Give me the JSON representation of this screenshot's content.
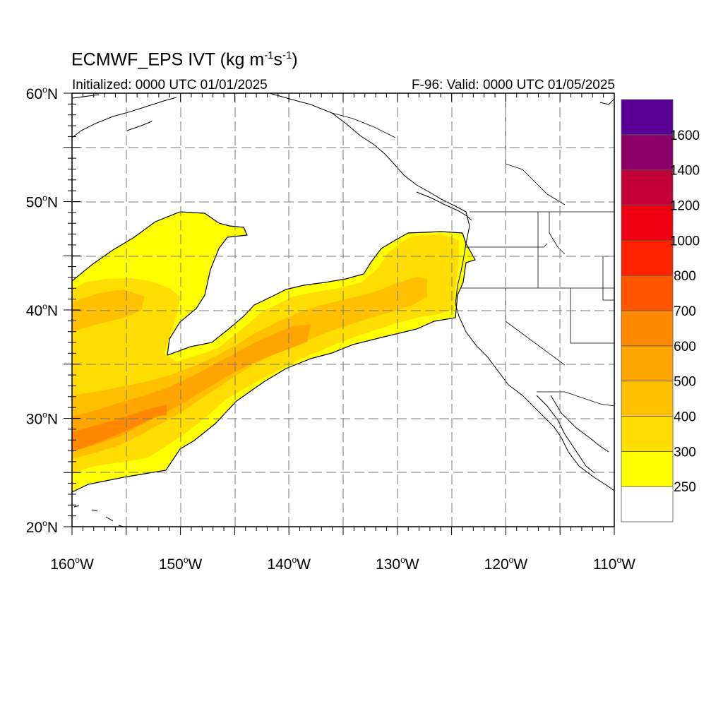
{
  "title": {
    "prefix": "ECMWF_EPS IVT (kg m",
    "exp1": "-1",
    "middle": "s",
    "exp2": "-1",
    "suffix": ")"
  },
  "initialized_label": "Initialized: 0000 UTC 01/01/2025",
  "valid_label": "F-96: Valid: 0000 UTC 01/05/2025",
  "map": {
    "lon_range": [
      -160,
      -110
    ],
    "lat_range": [
      20,
      60
    ],
    "grid_style": "dashed",
    "lon_ticks": [
      {
        "value": -160,
        "num": "160",
        "hemi": "W"
      },
      {
        "value": -150,
        "num": "150",
        "hemi": "W"
      },
      {
        "value": -140,
        "num": "140",
        "hemi": "W"
      },
      {
        "value": -130,
        "num": "130",
        "hemi": "W"
      },
      {
        "value": -120,
        "num": "120",
        "hemi": "W"
      },
      {
        "value": -110,
        "num": "110",
        "hemi": "W"
      }
    ],
    "lat_ticks": [
      {
        "value": 20,
        "num": "20",
        "hemi": "N"
      },
      {
        "value": 30,
        "num": "30",
        "hemi": "N"
      },
      {
        "value": 40,
        "num": "40",
        "hemi": "N"
      },
      {
        "value": 50,
        "num": "50",
        "hemi": "N"
      },
      {
        "value": 60,
        "num": "60",
        "hemi": "N"
      }
    ]
  },
  "colorbar": {
    "labels": [
      "250",
      "300",
      "400",
      "500",
      "600",
      "700",
      "800",
      "1000",
      "1200",
      "1400",
      "1600"
    ],
    "colors": [
      "#ffffff",
      "#ffff00",
      "#ffdd00",
      "#ffc000",
      "#ffa500",
      "#ff8800",
      "#ff5500",
      "#ff2200",
      "#ee0011",
      "#c2003a",
      "#8a0068",
      "#5a0096"
    ]
  },
  "chart_data": {
    "type": "heatmap",
    "variable": "IVT",
    "units": "kg m-1 s-1",
    "x_range": [
      -160,
      -110
    ],
    "y_range": [
      20,
      60
    ],
    "levels": [
      250,
      300,
      400,
      500,
      600,
      700,
      800,
      1000,
      1200,
      1400,
      1600
    ],
    "features": [
      {
        "region": "main-river",
        "level": 250
      },
      {
        "region": "main-river-inner",
        "level": 300
      },
      {
        "region": "main-river-core",
        "level": 400
      },
      {
        "region": "main-river-peak",
        "level": 500
      },
      {
        "region": "main-river-max",
        "level": 600
      },
      {
        "region": "northern-branch",
        "level": 250
      },
      {
        "region": "northern-branch-inner",
        "level": 300
      }
    ]
  }
}
